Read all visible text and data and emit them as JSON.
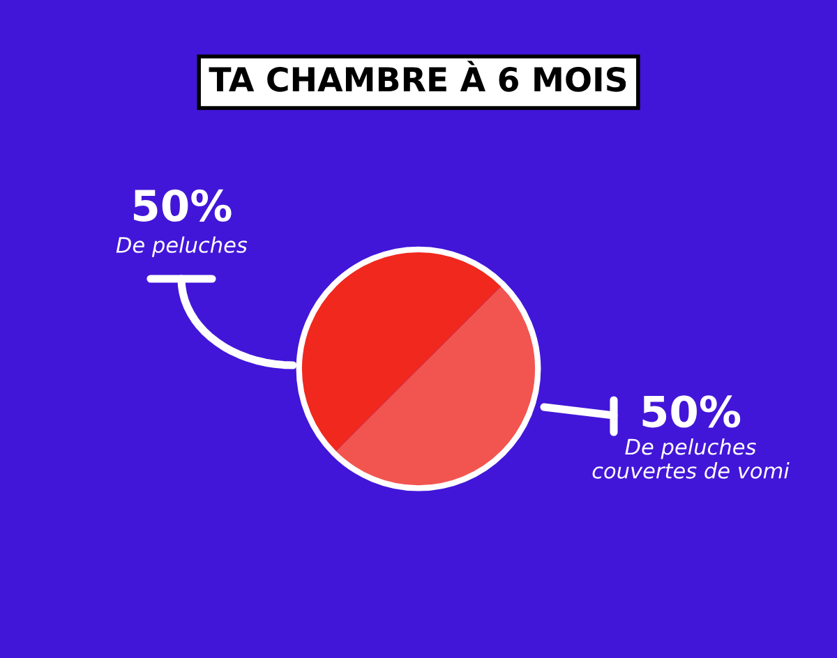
{
  "chart_data": {
    "type": "pie",
    "title": "TA CHAMBRE À 6 MOIS",
    "categories": [
      "De peluches",
      "De peluches\ncouvertes de vomi"
    ],
    "values": [
      50,
      50
    ],
    "value_labels": [
      "50%",
      "50%"
    ],
    "colors": [
      "#f0281e",
      "#f25550"
    ],
    "legend": false
  }
}
